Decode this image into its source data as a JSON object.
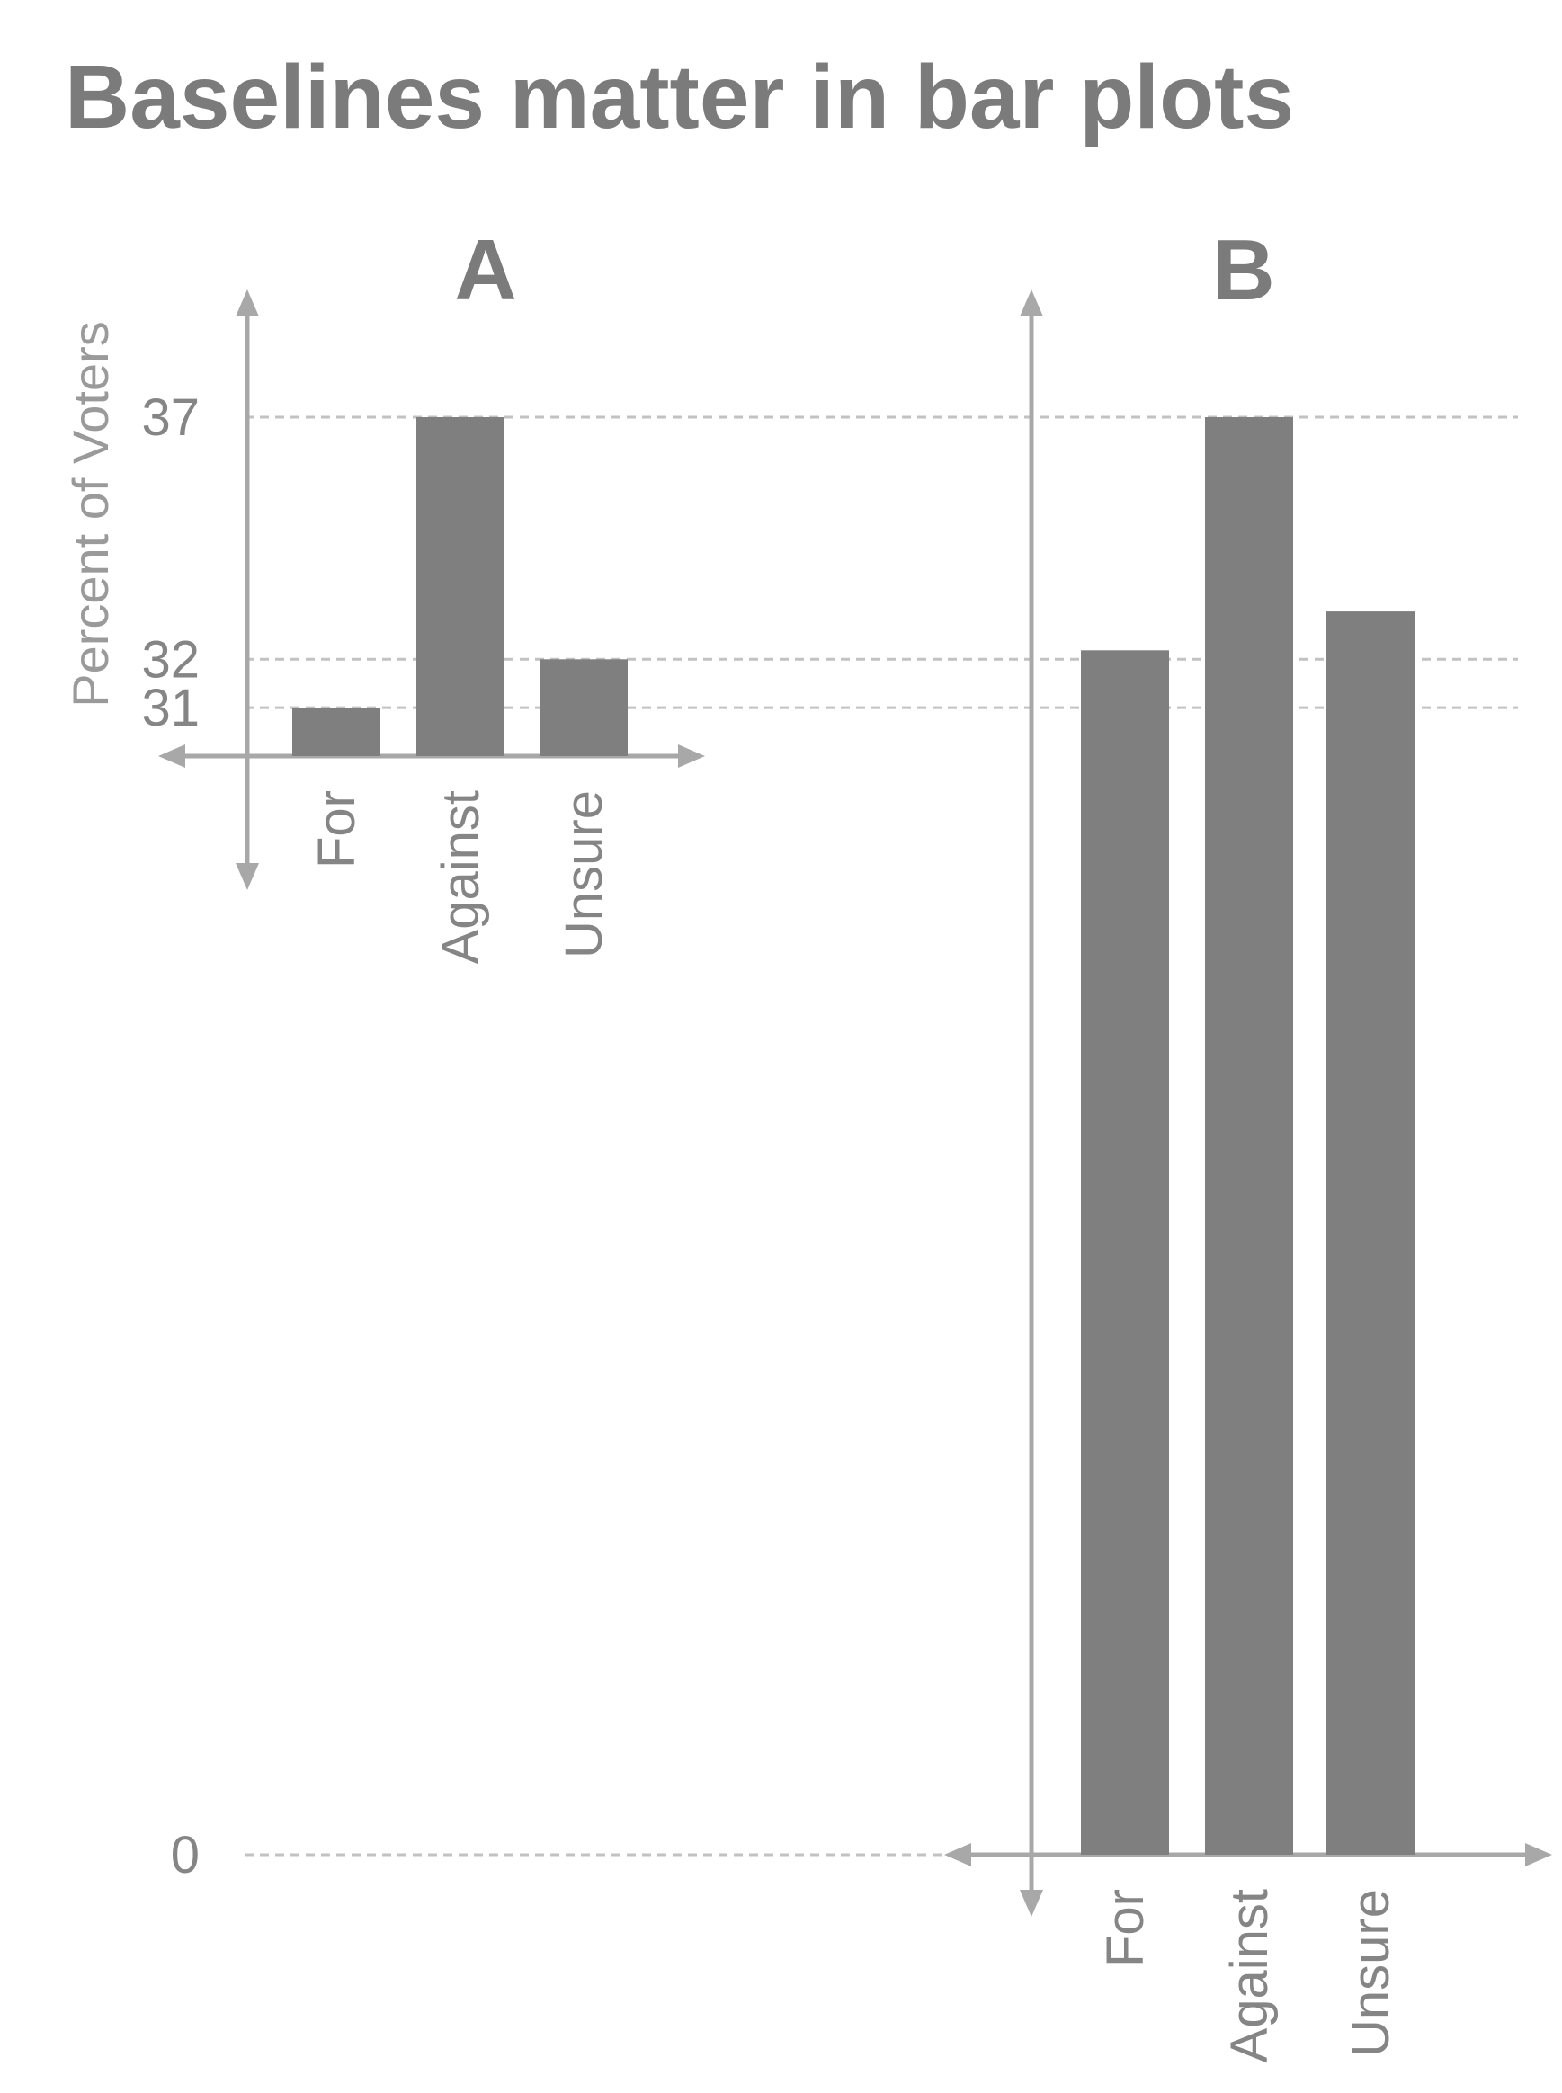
{
  "title": "Baselines matter in bar plots",
  "ylabel": "Percent of Voters",
  "chart_data": [
    {
      "type": "bar",
      "panel": "A",
      "categories": [
        "For",
        "Against",
        "Unsure"
      ],
      "values": [
        31,
        37,
        32
      ],
      "ylabel": "Percent of Voters",
      "yticks": [
        31,
        32,
        37
      ],
      "ylim": [
        30,
        37
      ],
      "baseline": 30,
      "grid": "dashed guides at 31, 32, 37"
    },
    {
      "type": "bar",
      "panel": "B",
      "categories": [
        "For",
        "Against",
        "Unsure"
      ],
      "values": [
        31,
        37,
        32
      ],
      "yticks": [
        0
      ],
      "ylim": [
        0,
        37
      ],
      "baseline": 0,
      "grid": "dashed guides at 0, 31, 32, 37"
    }
  ],
  "colors": {
    "title": "#7b7b7b",
    "bar": "#7f7f7f",
    "axis": "#a8a8a8",
    "guide": "#c2c2c2",
    "tick_text": "#858585"
  }
}
